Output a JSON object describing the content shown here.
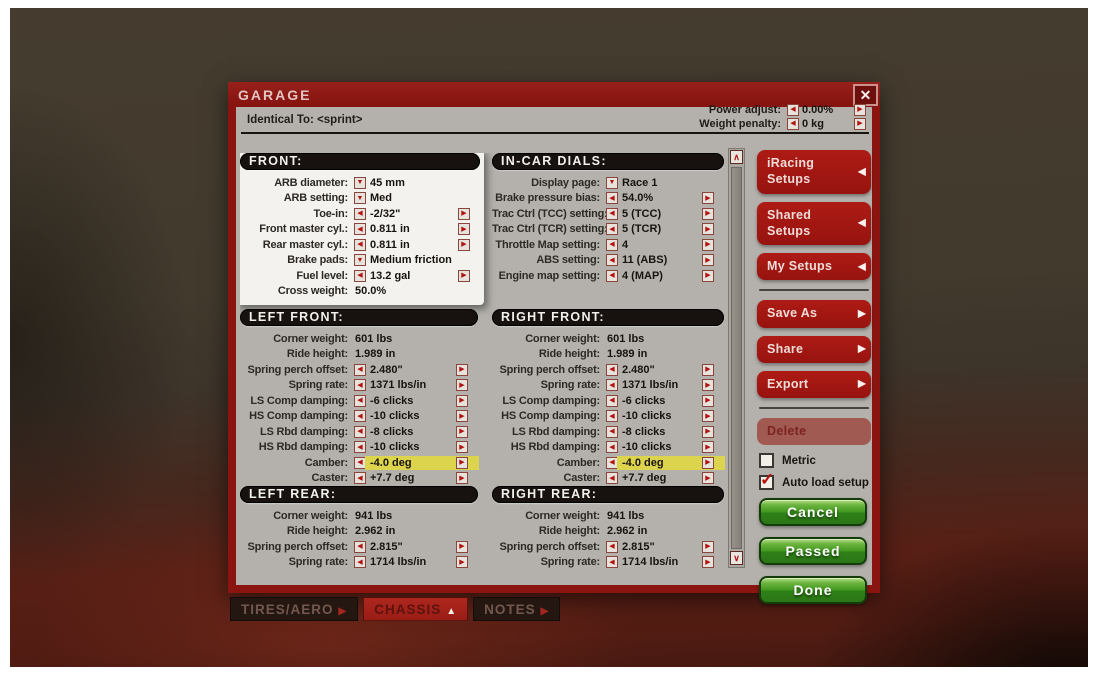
{
  "window": {
    "title": "GARAGE"
  },
  "icons": {
    "close": "✕",
    "arrow_left": "◀",
    "arrow_right": "▶",
    "arrow_down": "▼",
    "arrow_up": "▲",
    "check": "✓",
    "scroll_up": "∧",
    "scroll_down": "∨"
  },
  "colors": {
    "frame_red": "#8a1410",
    "body_gray": "#b4b1ac",
    "highlight_yellow": "#ddd44e",
    "button_green": "#42981f",
    "sidebar_red": "#a21511"
  },
  "header": {
    "identical_to": "Identical To: <sprint>",
    "power_adjust": {
      "label": "Power adjust:",
      "value": "0.00%"
    },
    "weight_penalty": {
      "label": "Weight penalty:",
      "value": "0 kg"
    }
  },
  "sections": {
    "front": {
      "title": "FRONT:",
      "highlighted": true,
      "rows": [
        {
          "label": "ARB diameter:",
          "type": "dropdown",
          "value": "45 mm"
        },
        {
          "label": "ARB setting:",
          "type": "dropdown",
          "value": "Med"
        },
        {
          "label": "Toe-in:",
          "type": "stepper",
          "value": "-2/32\""
        },
        {
          "label": "Front master cyl.:",
          "type": "stepper",
          "value": "0.811 in"
        },
        {
          "label": "Rear master cyl.:",
          "type": "stepper",
          "value": "0.811 in"
        },
        {
          "label": "Brake pads:",
          "type": "dropdown",
          "value": "Medium friction"
        },
        {
          "label": "Fuel level:",
          "type": "stepper",
          "value": "13.2 gal"
        },
        {
          "label": "Cross weight:",
          "type": "static",
          "value": "50.0%"
        }
      ]
    },
    "in_car_dials": {
      "title": "IN-CAR DIALS:",
      "rows": [
        {
          "label": "Display page:",
          "type": "dropdown",
          "value": "Race 1"
        },
        {
          "label": "Brake pressure bias:",
          "type": "stepper",
          "value": "54.0%"
        },
        {
          "label": "Trac Ctrl (TCC) setting:",
          "type": "stepper",
          "value": "5 (TCC)"
        },
        {
          "label": "Trac Ctrl (TCR) setting:",
          "type": "stepper",
          "value": "5 (TCR)"
        },
        {
          "label": "Throttle Map setting:",
          "type": "stepper",
          "value": "4"
        },
        {
          "label": "ABS setting:",
          "type": "stepper",
          "value": "11 (ABS)"
        },
        {
          "label": "Engine map setting:",
          "type": "stepper",
          "value": "4 (MAP)"
        }
      ]
    },
    "left_front": {
      "title": "LEFT FRONT:",
      "rows": [
        {
          "label": "Corner weight:",
          "type": "static",
          "value": "601 lbs"
        },
        {
          "label": "Ride height:",
          "type": "static",
          "value": "1.989 in"
        },
        {
          "label": "Spring perch offset:",
          "type": "stepper",
          "value": "2.480\""
        },
        {
          "label": "Spring rate:",
          "type": "stepper",
          "value": "1371 lbs/in"
        },
        {
          "label": "LS Comp damping:",
          "type": "stepper",
          "value": "-6 clicks"
        },
        {
          "label": "HS Comp damping:",
          "type": "stepper",
          "value": "-10 clicks"
        },
        {
          "label": "LS Rbd damping:",
          "type": "stepper",
          "value": "-8 clicks"
        },
        {
          "label": "HS Rbd damping:",
          "type": "stepper",
          "value": "-10 clicks"
        },
        {
          "label": "Camber:",
          "type": "stepper",
          "value": "-4.0 deg",
          "highlight": true
        },
        {
          "label": "Caster:",
          "type": "stepper",
          "value": "+7.7 deg"
        }
      ]
    },
    "right_front": {
      "title": "RIGHT FRONT:",
      "rows": [
        {
          "label": "Corner weight:",
          "type": "static",
          "value": "601 lbs"
        },
        {
          "label": "Ride height:",
          "type": "static",
          "value": "1.989 in"
        },
        {
          "label": "Spring perch offset:",
          "type": "stepper",
          "value": "2.480\""
        },
        {
          "label": "Spring rate:",
          "type": "stepper",
          "value": "1371 lbs/in"
        },
        {
          "label": "LS Comp damping:",
          "type": "stepper",
          "value": "-6 clicks"
        },
        {
          "label": "HS Comp damping:",
          "type": "stepper",
          "value": "-10 clicks"
        },
        {
          "label": "LS Rbd damping:",
          "type": "stepper",
          "value": "-8 clicks"
        },
        {
          "label": "HS Rbd damping:",
          "type": "stepper",
          "value": "-10 clicks"
        },
        {
          "label": "Camber:",
          "type": "stepper",
          "value": "-4.0 deg",
          "highlight": true
        },
        {
          "label": "Caster:",
          "type": "stepper",
          "value": "+7.7 deg"
        }
      ]
    },
    "left_rear": {
      "title": "LEFT REAR:",
      "rows": [
        {
          "label": "Corner weight:",
          "type": "static",
          "value": "941 lbs"
        },
        {
          "label": "Ride height:",
          "type": "static",
          "value": "2.962 in"
        },
        {
          "label": "Spring perch offset:",
          "type": "stepper",
          "value": "2.815\""
        },
        {
          "label": "Spring rate:",
          "type": "stepper",
          "value": "1714 lbs/in"
        }
      ]
    },
    "right_rear": {
      "title": "RIGHT REAR:",
      "rows": [
        {
          "label": "Corner weight:",
          "type": "static",
          "value": "941 lbs"
        },
        {
          "label": "Ride height:",
          "type": "static",
          "value": "2.962 in"
        },
        {
          "label": "Spring perch offset:",
          "type": "stepper",
          "value": "2.815\""
        },
        {
          "label": "Spring rate:",
          "type": "stepper",
          "value": "1714 lbs/in"
        }
      ]
    }
  },
  "sidebar": {
    "nav": [
      {
        "label": "iRacing Setups",
        "arrow": "left"
      },
      {
        "label": "Shared Setups",
        "arrow": "left"
      },
      {
        "label": "My Setups",
        "arrow": "left"
      },
      {
        "divider": true
      },
      {
        "label": "Save As",
        "arrow": "right"
      },
      {
        "label": "Share",
        "arrow": "right"
      },
      {
        "label": "Export",
        "arrow": "right"
      },
      {
        "divider": true
      },
      {
        "label": "Delete",
        "disabled": true
      }
    ],
    "checkboxes": [
      {
        "label": "Metric",
        "checked": false
      },
      {
        "label": "Auto load setup",
        "checked": true
      }
    ],
    "actions": [
      {
        "label": "Cancel"
      },
      {
        "label": "Passed"
      },
      {
        "label": "Done"
      }
    ]
  },
  "tabs": [
    {
      "label": "TIRES/AERO",
      "arrow": "right",
      "active": false
    },
    {
      "label": "CHASSIS",
      "arrow": "up",
      "active": true
    },
    {
      "label": "NOTES",
      "arrow": "right",
      "active": false
    }
  ]
}
